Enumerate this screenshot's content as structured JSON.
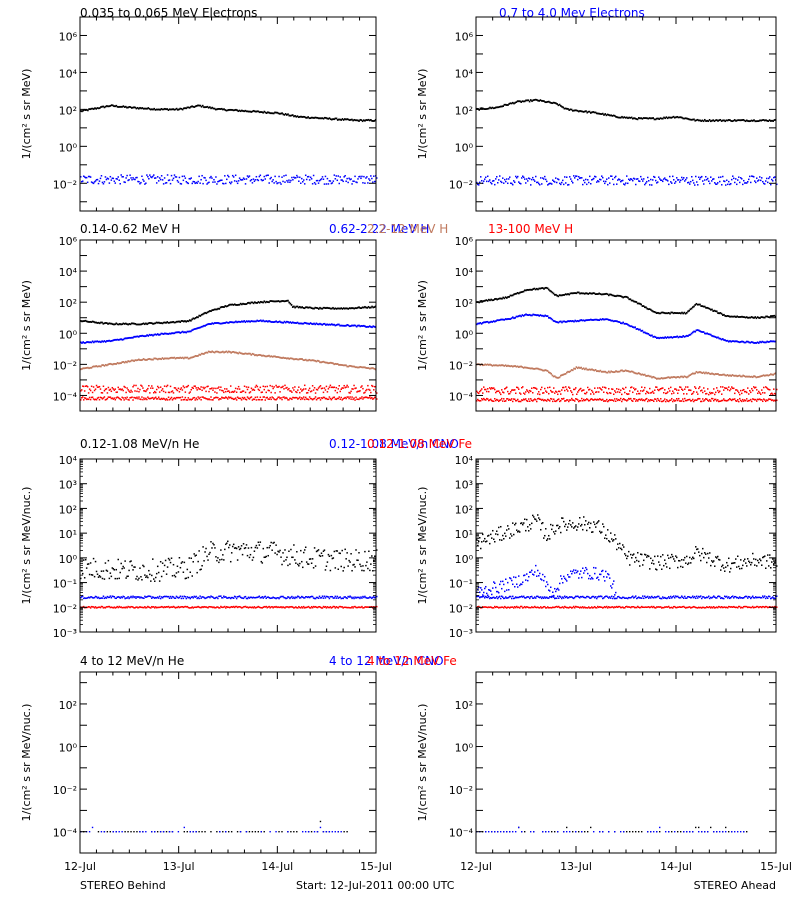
{
  "colors": {
    "black": "#000000",
    "blue": "#0000ff",
    "brown": "#c07a5f",
    "red": "#ff0000",
    "axis": "#000000"
  },
  "footer": {
    "left": "STEREO Behind",
    "center": "Start: 12-Jul-2011 00:00 UTC",
    "right": "STEREO Ahead"
  },
  "chart_data": [
    {
      "type": "scatter",
      "row": 1,
      "spacecraft": "STEREO Behind",
      "title_parts": [
        {
          "text": "0.035 to 0.065 MeV Electrons",
          "color": "black"
        },
        {
          "text": "0.7 to 4.0 Mev Electrons",
          "color": "blue"
        }
      ],
      "ylabel": "1/(cm² s sr MeV)",
      "yscale": "log",
      "ylim_exp": [
        -3.5,
        7
      ],
      "ytick_labels": [
        {
          "exp": -2,
          "label": "10⁻²"
        },
        {
          "exp": 0,
          "label": "10⁰"
        },
        {
          "exp": 2,
          "label": "10²"
        },
        {
          "exp": 4,
          "label": "10⁴"
        },
        {
          "exp": 6,
          "label": "10⁶"
        }
      ],
      "x_days": [
        0,
        1,
        2,
        3
      ],
      "xtick_labels": [
        "12-Jul",
        "13-Jul",
        "14-Jul",
        "15-Jul"
      ],
      "series": [
        {
          "color": "black",
          "style": "line",
          "x": [
            0,
            0.1,
            0.3,
            0.5,
            0.8,
            1.0,
            1.2,
            1.4,
            1.7,
            2.0,
            2.2,
            2.5,
            2.8,
            3.0
          ],
          "y": [
            1.9,
            2.0,
            2.2,
            2.1,
            2.0,
            2.0,
            2.2,
            2.0,
            1.9,
            1.8,
            1.6,
            1.5,
            1.4,
            1.4
          ]
        },
        {
          "color": "blue",
          "style": "noise",
          "x": [
            0,
            3
          ],
          "y": [
            -1.8,
            -1.8
          ],
          "spread": 0.25
        }
      ]
    },
    {
      "type": "scatter",
      "row": 1,
      "spacecraft": "STEREO Ahead",
      "ylabel": "1/(cm² s sr MeV)",
      "yscale": "log",
      "ylim_exp": [
        -3.5,
        7
      ],
      "ytick_labels": [
        {
          "exp": -2,
          "label": "10⁻²"
        },
        {
          "exp": 0,
          "label": "10⁰"
        },
        {
          "exp": 2,
          "label": "10²"
        },
        {
          "exp": 4,
          "label": "10⁴"
        },
        {
          "exp": 6,
          "label": "10⁶"
        }
      ],
      "x_days": [
        0,
        1,
        2,
        3
      ],
      "xtick_labels": [
        "12-Jul",
        "13-Jul",
        "14-Jul",
        "15-Jul"
      ],
      "series": [
        {
          "color": "black",
          "style": "line",
          "x": [
            0,
            0.2,
            0.4,
            0.6,
            0.8,
            0.9,
            1.2,
            1.4,
            1.6,
            1.8,
            2.0,
            2.2,
            2.5,
            2.8,
            3.0
          ],
          "y": [
            2.0,
            2.1,
            2.4,
            2.5,
            2.3,
            2.0,
            1.8,
            1.6,
            1.5,
            1.5,
            1.6,
            1.4,
            1.4,
            1.4,
            1.4
          ]
        },
        {
          "color": "blue",
          "style": "noise",
          "x": [
            0,
            3
          ],
          "y": [
            -1.85,
            -1.85
          ],
          "spread": 0.25
        }
      ]
    },
    {
      "type": "scatter",
      "row": 2,
      "spacecraft": "STEREO Behind",
      "title_parts": [
        {
          "text": "0.14-0.62 MeV H",
          "color": "black"
        },
        {
          "text": "0.62-2.22 MeV H",
          "color": "blue"
        },
        {
          "text": "2.2-12 MeV H",
          "color": "brown"
        },
        {
          "text": "13-100 MeV H",
          "color": "red"
        }
      ],
      "ylabel": "1/(cm² s sr MeV)",
      "yscale": "log",
      "ylim_exp": [
        -5,
        6
      ],
      "ytick_labels": [
        {
          "exp": -4,
          "label": "10⁻⁴"
        },
        {
          "exp": -2,
          "label": "10⁻²"
        },
        {
          "exp": 0,
          "label": "10⁰"
        },
        {
          "exp": 2,
          "label": "10²"
        },
        {
          "exp": 4,
          "label": "10⁴"
        },
        {
          "exp": 6,
          "label": "10⁶"
        }
      ],
      "x_days": [
        0,
        1,
        2,
        3
      ],
      "xtick_labels": [
        "12-Jul",
        "13-Jul",
        "14-Jul",
        "15-Jul"
      ],
      "series": [
        {
          "color": "black",
          "style": "line",
          "x": [
            0,
            0.3,
            0.6,
            0.9,
            1.1,
            1.3,
            1.5,
            1.8,
            2.1,
            2.15,
            2.4,
            2.7,
            3.0
          ],
          "y": [
            0.8,
            0.6,
            0.6,
            0.7,
            0.8,
            1.4,
            1.8,
            2.0,
            2.1,
            1.7,
            1.6,
            1.6,
            1.7
          ]
        },
        {
          "color": "blue",
          "style": "line",
          "x": [
            0,
            0.3,
            0.6,
            0.9,
            1.1,
            1.3,
            1.5,
            1.8,
            2.1,
            2.4,
            2.7,
            3.0
          ],
          "y": [
            -0.6,
            -0.5,
            -0.2,
            0.0,
            0.1,
            0.6,
            0.7,
            0.8,
            0.7,
            0.6,
            0.5,
            0.4
          ]
        },
        {
          "color": "brown",
          "style": "line",
          "x": [
            0,
            0.3,
            0.6,
            0.9,
            1.1,
            1.3,
            1.5,
            1.8,
            2.1,
            2.4,
            2.7,
            3.0
          ],
          "y": [
            -2.3,
            -2.0,
            -1.7,
            -1.6,
            -1.6,
            -1.2,
            -1.2,
            -1.4,
            -1.6,
            -1.8,
            -2.1,
            -2.3
          ]
        },
        {
          "color": "red",
          "style": "noise",
          "x": [
            0,
            3
          ],
          "y": [
            -3.6,
            -3.6
          ],
          "spread": 0.25
        },
        {
          "color": "red",
          "style": "noise",
          "x": [
            0,
            3
          ],
          "y": [
            -4.2,
            -4.2
          ],
          "spread": 0.1
        }
      ]
    },
    {
      "type": "scatter",
      "row": 2,
      "spacecraft": "STEREO Ahead",
      "ylabel": "1/(cm² s sr MeV)",
      "yscale": "log",
      "ylim_exp": [
        -5,
        6
      ],
      "ytick_labels": [
        {
          "exp": -4,
          "label": "10⁻⁴"
        },
        {
          "exp": -2,
          "label": "10⁻²"
        },
        {
          "exp": 0,
          "label": "10⁰"
        },
        {
          "exp": 2,
          "label": "10²"
        },
        {
          "exp": 4,
          "label": "10⁴"
        },
        {
          "exp": 6,
          "label": "10⁶"
        }
      ],
      "x_days": [
        0,
        1,
        2,
        3
      ],
      "xtick_labels": [
        "12-Jul",
        "13-Jul",
        "14-Jul",
        "15-Jul"
      ],
      "series": [
        {
          "color": "black",
          "style": "line",
          "x": [
            0,
            0.3,
            0.5,
            0.7,
            0.8,
            1.0,
            1.3,
            1.5,
            1.8,
            2.1,
            2.2,
            2.5,
            2.8,
            3.0
          ],
          "y": [
            2.0,
            2.3,
            2.8,
            2.9,
            2.4,
            2.6,
            2.5,
            2.3,
            1.3,
            1.3,
            1.9,
            1.1,
            1.0,
            1.1
          ]
        },
        {
          "color": "blue",
          "style": "line",
          "x": [
            0,
            0.3,
            0.5,
            0.7,
            0.8,
            1.0,
            1.3,
            1.5,
            1.8,
            2.1,
            2.2,
            2.5,
            2.8,
            3.0
          ],
          "y": [
            0.6,
            0.9,
            1.2,
            1.1,
            0.7,
            0.8,
            0.9,
            0.6,
            -0.3,
            -0.2,
            0.2,
            -0.5,
            -0.6,
            -0.5
          ]
        },
        {
          "color": "brown",
          "style": "line",
          "x": [
            0,
            0.3,
            0.5,
            0.7,
            0.8,
            1.0,
            1.3,
            1.5,
            1.8,
            2.1,
            2.2,
            2.5,
            2.8,
            3.0
          ],
          "y": [
            -2.0,
            -2.1,
            -2.2,
            -2.4,
            -2.9,
            -2.2,
            -2.5,
            -2.4,
            -2.9,
            -2.8,
            -2.5,
            -2.7,
            -2.8,
            -2.6
          ]
        },
        {
          "color": "red",
          "style": "noise",
          "x": [
            0,
            3
          ],
          "y": [
            -3.7,
            -3.7
          ],
          "spread": 0.25
        },
        {
          "color": "red",
          "style": "noise",
          "x": [
            0,
            3
          ],
          "y": [
            -4.3,
            -4.3
          ],
          "spread": 0.1
        }
      ]
    },
    {
      "type": "scatter",
      "row": 3,
      "spacecraft": "STEREO Behind",
      "title_parts": [
        {
          "text": "0.12-1.08 MeV/n He",
          "color": "black"
        },
        {
          "text": "0.12-1.08 MeV/n CNO",
          "color": "blue"
        },
        {
          "text": "0.12-1.08 MeV Fe",
          "color": "red"
        }
      ],
      "ylabel": "1/(cm² s sr MeV/nuc.)",
      "yscale": "log",
      "ylim_exp": [
        -3,
        4
      ],
      "ytick_labels": [
        {
          "exp": -3,
          "label": "10⁻³"
        },
        {
          "exp": -2,
          "label": "10⁻²"
        },
        {
          "exp": -1,
          "label": "10⁻¹"
        },
        {
          "exp": 0,
          "label": "10⁰"
        },
        {
          "exp": 1,
          "label": "10¹"
        },
        {
          "exp": 2,
          "label": "10²"
        },
        {
          "exp": 3,
          "label": "10³"
        },
        {
          "exp": 4,
          "label": "10⁴"
        }
      ],
      "x_days": [
        0,
        1,
        2,
        3
      ],
      "xtick_labels": [
        "12-Jul",
        "13-Jul",
        "14-Jul",
        "15-Jul"
      ],
      "series": [
        {
          "color": "black",
          "style": "scatter",
          "x": [
            0,
            0.4,
            0.8,
            1.1,
            1.3,
            1.6,
            2.0,
            2.3,
            2.6,
            3.0
          ],
          "y": [
            -0.4,
            -0.5,
            -0.5,
            -0.4,
            0.2,
            0.3,
            0.2,
            0.0,
            -0.1,
            -0.1
          ],
          "spread": 0.45
        },
        {
          "color": "blue",
          "style": "noise",
          "x": [
            0,
            3
          ],
          "y": [
            -1.6,
            -1.6
          ],
          "spread": 0.05
        },
        {
          "color": "red",
          "style": "noise",
          "x": [
            0,
            3
          ],
          "y": [
            -2.0,
            -2.0
          ],
          "spread": 0.03
        }
      ]
    },
    {
      "type": "scatter",
      "row": 3,
      "spacecraft": "STEREO Ahead",
      "ylabel": "1/(cm² s sr MeV/nuc.)",
      "yscale": "log",
      "ylim_exp": [
        -3,
        4
      ],
      "ytick_labels": [
        {
          "exp": -3,
          "label": "10⁻³"
        },
        {
          "exp": -2,
          "label": "10⁻²"
        },
        {
          "exp": -1,
          "label": "10⁻¹"
        },
        {
          "exp": 0,
          "label": "10⁰"
        },
        {
          "exp": 1,
          "label": "10¹"
        },
        {
          "exp": 2,
          "label": "10²"
        },
        {
          "exp": 3,
          "label": "10³"
        },
        {
          "exp": 4,
          "label": "10⁴"
        }
      ],
      "x_days": [
        0,
        1,
        2,
        3
      ],
      "xtick_labels": [
        "12-Jul",
        "13-Jul",
        "14-Jul",
        "15-Jul"
      ],
      "series": [
        {
          "color": "black",
          "style": "scatter",
          "x": [
            0,
            0.2,
            0.4,
            0.6,
            0.7,
            0.8,
            1.0,
            1.2,
            1.4,
            1.5,
            1.8,
            2.1,
            2.2,
            2.5,
            2.8,
            3.0
          ],
          "y": [
            0.6,
            0.9,
            1.2,
            1.5,
            0.9,
            1.3,
            1.4,
            1.3,
            0.6,
            0.0,
            -0.2,
            -0.1,
            0.2,
            -0.3,
            -0.1,
            -0.2
          ],
          "spread": 0.3
        },
        {
          "color": "blue",
          "style": "scatter",
          "x": [
            0,
            0.3,
            0.5,
            0.6,
            0.75,
            0.9,
            1.1,
            1.3,
            1.4
          ],
          "y": [
            -1.4,
            -1.1,
            -0.8,
            -0.5,
            -1.4,
            -0.7,
            -0.6,
            -0.7,
            -1.4
          ],
          "spread": 0.25
        },
        {
          "color": "blue",
          "style": "noise",
          "x": [
            0,
            3
          ],
          "y": [
            -1.6,
            -1.6
          ],
          "spread": 0.05
        },
        {
          "color": "red",
          "style": "noise",
          "x": [
            0,
            3
          ],
          "y": [
            -2.0,
            -2.0
          ],
          "spread": 0.03
        }
      ]
    },
    {
      "type": "scatter",
      "row": 4,
      "spacecraft": "STEREO Behind",
      "title_parts": [
        {
          "text": "4 to 12 MeV/n He",
          "color": "black"
        },
        {
          "text": "4 to 12 MeV/n CNO",
          "color": "blue"
        },
        {
          "text": "4 to 12 MeV Fe",
          "color": "red"
        }
      ],
      "ylabel": "1/(cm² s sr MeV/nuc.)",
      "yscale": "log",
      "ylim_exp": [
        -5,
        3.5
      ],
      "ytick_labels": [
        {
          "exp": -4,
          "label": "10⁻⁴"
        },
        {
          "exp": -2,
          "label": "10⁻²"
        },
        {
          "exp": 0,
          "label": "10⁰"
        },
        {
          "exp": 2,
          "label": "10²"
        }
      ],
      "x_days": [
        0,
        1,
        2,
        3
      ],
      "xtick_labels": [
        "12-Jul",
        "13-Jul",
        "14-Jul",
        "15-Jul"
      ],
      "series": [
        {
          "color": "black",
          "style": "sparse",
          "x": [
            0.0,
            2.7
          ],
          "y": [
            -4.0,
            -4.0
          ],
          "spread": 0.12
        },
        {
          "color": "blue",
          "style": "sparse",
          "x": [
            0.0,
            2.7
          ],
          "y": [
            -4.0,
            -4.0
          ],
          "spread": 0.05
        }
      ]
    },
    {
      "type": "scatter",
      "row": 4,
      "spacecraft": "STEREO Ahead",
      "ylabel": "1/(cm² s sr MeV/nuc.)",
      "yscale": "log",
      "ylim_exp": [
        -5,
        3.5
      ],
      "ytick_labels": [
        {
          "exp": -4,
          "label": "10⁻⁴"
        },
        {
          "exp": -2,
          "label": "10⁻²"
        },
        {
          "exp": 0,
          "label": "10⁰"
        },
        {
          "exp": 2,
          "label": "10²"
        }
      ],
      "x_days": [
        0,
        1,
        2,
        3
      ],
      "xtick_labels": [
        "12-Jul",
        "13-Jul",
        "14-Jul",
        "15-Jul"
      ],
      "series": [
        {
          "color": "black",
          "style": "sparse",
          "x": [
            0.0,
            2.7
          ],
          "y": [
            -4.0,
            -4.0
          ],
          "spread": 0.05
        },
        {
          "color": "blue",
          "style": "sparse",
          "x": [
            0.0,
            2.7
          ],
          "y": [
            -4.0,
            -4.0
          ],
          "spread": 0.05
        }
      ]
    }
  ]
}
